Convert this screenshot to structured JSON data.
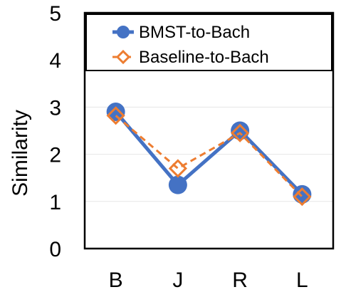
{
  "chart_data": {
    "type": "line",
    "categories": [
      "B",
      "J",
      "R",
      "L"
    ],
    "ylabel": "Similarity",
    "ylim": [
      0,
      5
    ],
    "yticks": [
      "0",
      "1",
      "2",
      "3",
      "4",
      "5"
    ],
    "grid": true,
    "legend_position": "top",
    "series": [
      {
        "name": "BMST-to-Bach",
        "values": [
          2.9,
          1.35,
          2.5,
          1.15
        ],
        "color": "#4472C4",
        "marker": "circle",
        "line": "solid"
      },
      {
        "name": "Baseline-to-Bach",
        "values": [
          2.82,
          1.7,
          2.45,
          1.1
        ],
        "color": "#ED7D31",
        "marker": "diamond-open",
        "line": "dashed"
      }
    ]
  }
}
